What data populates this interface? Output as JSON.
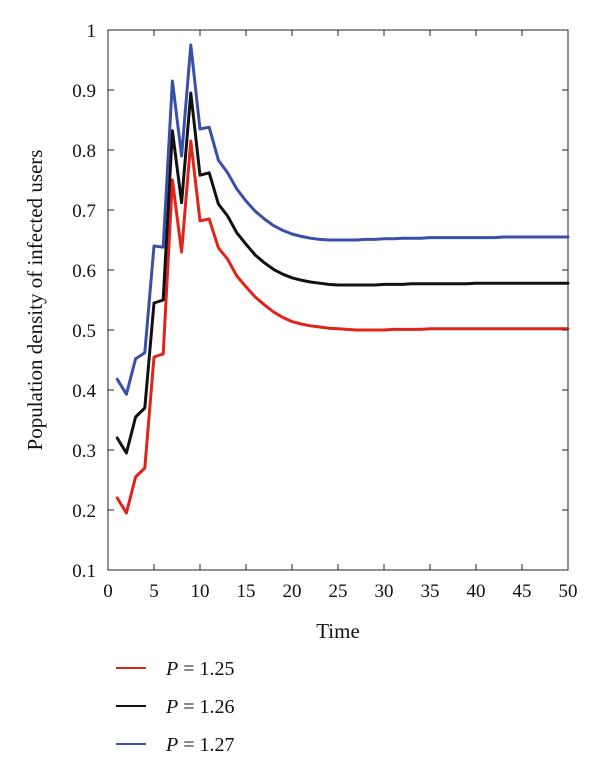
{
  "chart_data": {
    "type": "line",
    "xlabel": "Time",
    "ylabel": "Population density of infected users",
    "xlim": [
      0,
      50
    ],
    "ylim": [
      0.1,
      1.0
    ],
    "xticks": [
      0,
      5,
      10,
      15,
      20,
      25,
      30,
      35,
      40,
      45,
      50
    ],
    "yticks": [
      0.1,
      0.2,
      0.3,
      0.4,
      0.5,
      0.6,
      0.7,
      0.8,
      0.9,
      1.0
    ],
    "ytick_labels": [
      "0.1",
      "0.2",
      "0.3",
      "0.4",
      "0.5",
      "0.6",
      "0.7",
      "0.8",
      "0.9",
      "1"
    ],
    "grid": false,
    "legend_position": "bottom-left",
    "x": [
      1,
      2,
      3,
      4,
      5,
      6,
      7,
      8,
      9,
      10,
      11,
      12,
      13,
      14,
      15,
      16,
      17,
      18,
      19,
      20,
      21,
      22,
      23,
      24,
      25,
      26,
      27,
      28,
      29,
      30,
      31,
      32,
      33,
      34,
      35,
      36,
      37,
      38,
      39,
      40,
      41,
      42,
      43,
      44,
      45,
      46,
      47,
      48,
      49,
      50
    ],
    "series": [
      {
        "name": "P = 1.25",
        "name_parts": [
          "P",
          " = 1.25"
        ],
        "color": "#e2231a",
        "values": [
          0.22,
          0.195,
          0.255,
          0.27,
          0.455,
          0.46,
          0.75,
          0.63,
          0.815,
          0.682,
          0.685,
          0.637,
          0.618,
          0.59,
          0.572,
          0.555,
          0.542,
          0.53,
          0.521,
          0.514,
          0.51,
          0.507,
          0.505,
          0.503,
          0.502,
          0.501,
          0.5,
          0.5,
          0.5,
          0.5,
          0.501,
          0.501,
          0.501,
          0.501,
          0.502,
          0.502,
          0.502,
          0.502,
          0.502,
          0.502,
          0.502,
          0.502,
          0.502,
          0.502,
          0.502,
          0.502,
          0.502,
          0.502,
          0.502,
          0.502
        ]
      },
      {
        "name": "P = 1.26",
        "name_parts": [
          "P",
          " = 1.26"
        ],
        "color": "#111111",
        "values": [
          0.32,
          0.295,
          0.355,
          0.37,
          0.545,
          0.55,
          0.832,
          0.712,
          0.895,
          0.758,
          0.762,
          0.71,
          0.69,
          0.662,
          0.643,
          0.625,
          0.612,
          0.601,
          0.593,
          0.587,
          0.583,
          0.58,
          0.578,
          0.576,
          0.575,
          0.575,
          0.575,
          0.575,
          0.575,
          0.576,
          0.576,
          0.576,
          0.577,
          0.577,
          0.577,
          0.577,
          0.577,
          0.577,
          0.577,
          0.578,
          0.578,
          0.578,
          0.578,
          0.578,
          0.578,
          0.578,
          0.578,
          0.578,
          0.578,
          0.578
        ]
      },
      {
        "name": "P = 1.27",
        "name_parts": [
          "P",
          " = 1.27"
        ],
        "color": "#3a4fa8",
        "values": [
          0.418,
          0.393,
          0.452,
          0.462,
          0.64,
          0.638,
          0.915,
          0.79,
          0.975,
          0.835,
          0.838,
          0.783,
          0.762,
          0.735,
          0.715,
          0.698,
          0.685,
          0.674,
          0.666,
          0.66,
          0.656,
          0.653,
          0.651,
          0.65,
          0.65,
          0.65,
          0.65,
          0.651,
          0.651,
          0.652,
          0.652,
          0.653,
          0.653,
          0.653,
          0.654,
          0.654,
          0.654,
          0.654,
          0.654,
          0.654,
          0.654,
          0.654,
          0.655,
          0.655,
          0.655,
          0.655,
          0.655,
          0.655,
          0.655,
          0.655
        ]
      }
    ]
  }
}
